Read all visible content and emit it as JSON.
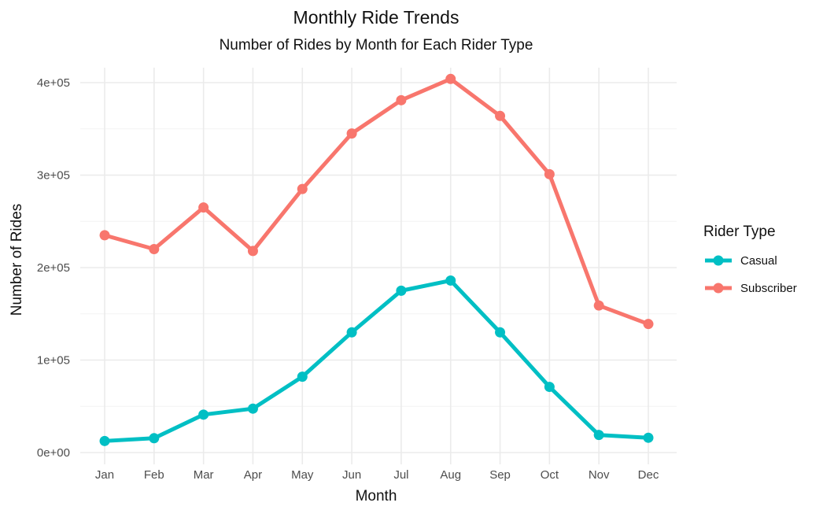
{
  "chart_data": {
    "type": "line",
    "title": "Monthly Ride Trends",
    "subtitle": "Number of Rides by Month for Each Rider Type",
    "xlabel": "Month",
    "ylabel": "Number of Rides",
    "categories": [
      "Jan",
      "Feb",
      "Mar",
      "Apr",
      "May",
      "Jun",
      "Jul",
      "Aug",
      "Sep",
      "Oct",
      "Nov",
      "Dec"
    ],
    "ylim": [
      0,
      400000
    ],
    "yticks": [
      0,
      100000,
      200000,
      300000,
      400000
    ],
    "ytick_labels": [
      "0e+00",
      "1e+05",
      "2e+05",
      "3e+05",
      "4e+05"
    ],
    "grid": true,
    "legend": {
      "title": "Rider Type",
      "position": "right"
    },
    "series": [
      {
        "name": "Casual",
        "color": "#00BFC4",
        "values": [
          12500,
          15500,
          41000,
          47500,
          82000,
          130000,
          175000,
          186000,
          130000,
          71000,
          19000,
          16000
        ]
      },
      {
        "name": "Subscriber",
        "color": "#F8766D",
        "values": [
          235000,
          220000,
          265000,
          218000,
          285000,
          345000,
          381000,
          404000,
          364000,
          301000,
          159000,
          139000
        ]
      }
    ]
  }
}
